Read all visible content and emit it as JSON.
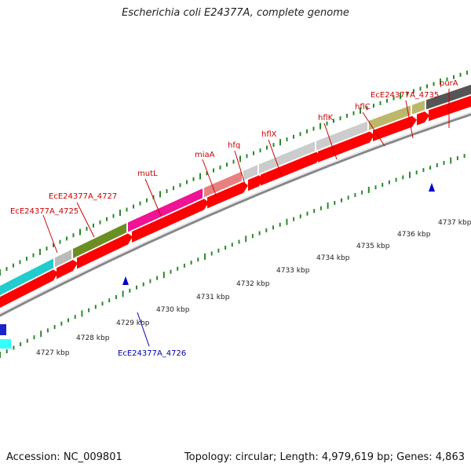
{
  "title": "Escherichia coli E24377A, complete genome",
  "footer": {
    "accession": "Accession: NC_009801",
    "summary": "Topology: circular; Length: 4,979,619 bp; Genes: 4,863"
  },
  "colors": {
    "red_gene": "#ff0000",
    "track_gray": "#888888",
    "tick_green": "#2a8a2a",
    "label_red": "#cc0000",
    "label_blue": "#0000aa",
    "marker_blue": "#0000cc"
  },
  "top_genes": [
    {
      "name": "EcE24377A_4725",
      "color": "#22cccc"
    },
    {
      "name": "",
      "color": "#bbbbbb"
    },
    {
      "name": "EcE24377A_4727",
      "color": "#6b8e23"
    },
    {
      "name": "mutL",
      "color": "#ee1493"
    },
    {
      "name": "miaA",
      "color": "#e88080"
    },
    {
      "name": "",
      "color": "#cccccc"
    },
    {
      "name": "hfq",
      "color": "#cccccc"
    },
    {
      "name": "hflX",
      "color": "#cccccc"
    },
    {
      "name": "hflK",
      "color": "#bdb76b"
    },
    {
      "name": "hflC",
      "color": "#bdb76b"
    },
    {
      "name": "EcE24377A_4735",
      "color": "#555555"
    },
    {
      "name": "purA",
      "color": "#1ec8f0"
    }
  ],
  "labels": [
    {
      "text": "EcE24377A_4725",
      "color": "label_red"
    },
    {
      "text": "EcE24377A_4727",
      "color": "label_red"
    },
    {
      "text": "mutL",
      "color": "label_red"
    },
    {
      "text": "miaA",
      "color": "label_red"
    },
    {
      "text": "hfq",
      "color": "label_red"
    },
    {
      "text": "hflX",
      "color": "label_red"
    },
    {
      "text": "hflK",
      "color": "label_red"
    },
    {
      "text": "hflC",
      "color": "label_red"
    },
    {
      "text": "EcE24377A_4735",
      "color": "label_red"
    },
    {
      "text": "purA",
      "color": "label_red"
    },
    {
      "text": "EcE24377A_4726",
      "color": "label_blue"
    }
  ],
  "kbp_labels": [
    "4727 kbp",
    "4728 kbp",
    "4729 kbp",
    "4730 kbp",
    "4731 kbp",
    "4732 kbp",
    "4733 kbp",
    "4734 kbp",
    "4735 kbp",
    "4736 kbp",
    "4737 kbp"
  ]
}
